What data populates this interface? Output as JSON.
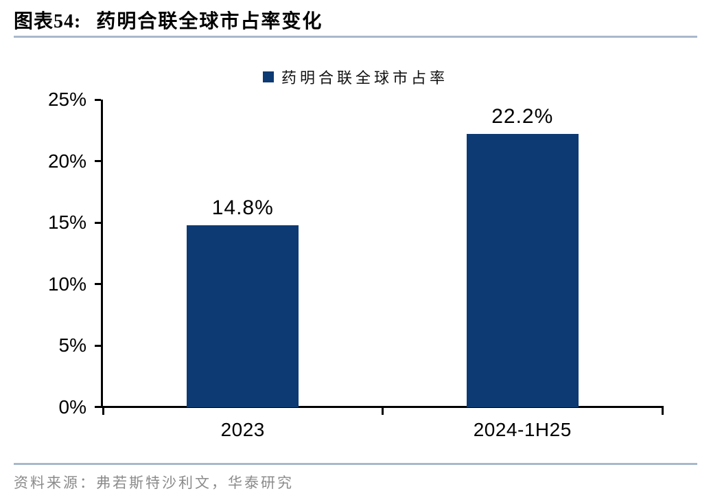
{
  "header": {
    "figure_label": "图表54:",
    "title": "药明合联全球市占率变化"
  },
  "legend": {
    "label": "药明合联全球市占率"
  },
  "chart_data": {
    "type": "bar",
    "title": "药明合联全球市占率变化",
    "categories": [
      "2023",
      "2024-1H25"
    ],
    "series": [
      {
        "name": "药明合联全球市占率",
        "values": [
          14.8,
          22.2
        ]
      }
    ],
    "value_labels": [
      "14.8%",
      "22.2%"
    ],
    "xlabel": "",
    "ylabel": "",
    "ylim": [
      0,
      25
    ],
    "ytick_step": 5,
    "ytick_labels": [
      "0%",
      "5%",
      "10%",
      "15%",
      "20%",
      "25%"
    ],
    "grid": false,
    "legend_position": "top-center",
    "bar_color": "#0d3a73"
  },
  "footer": {
    "source_text": "资料来源：弗若斯特沙利文，华泰研究"
  },
  "colors": {
    "bar": "#0d3a73",
    "divider": "#a8b8cc",
    "axis": "#000000",
    "source_text": "#8b8b8b"
  }
}
